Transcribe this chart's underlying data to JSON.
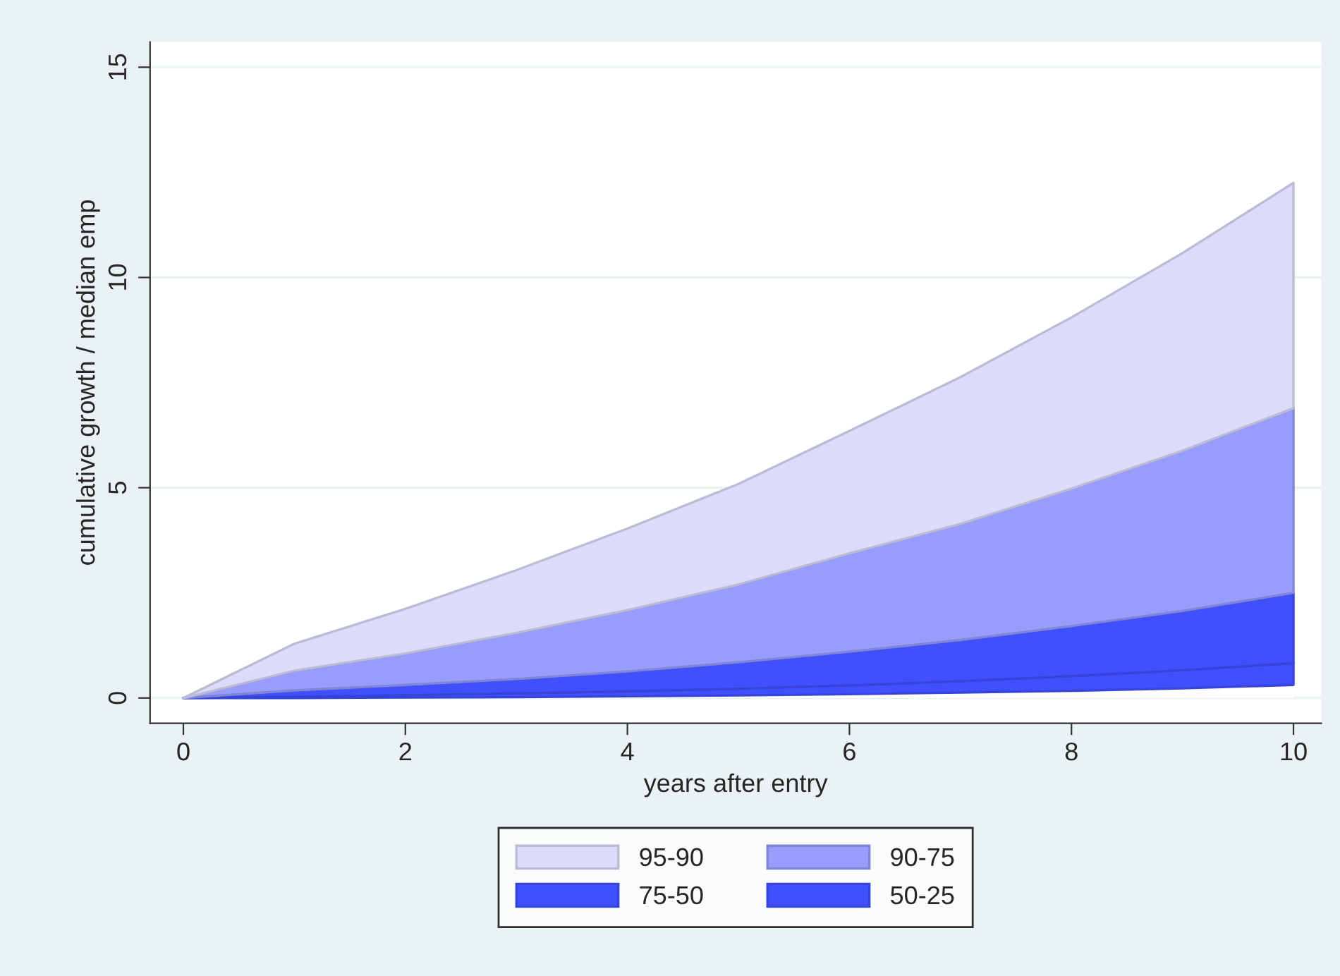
{
  "chart_data": {
    "type": "area",
    "stacked": true,
    "xlabel": "years after entry",
    "ylabel": "cumulative growth / median emp",
    "x": [
      0,
      1,
      2,
      3,
      4,
      5,
      6,
      7,
      8,
      9,
      10
    ],
    "series": [
      {
        "color": "#ffffff",
        "values": [
          0,
          0,
          0.01,
          0.02,
          0.04,
          0.06,
          0.09,
          0.13,
          0.17,
          0.23,
          0.31
        ]
      },
      {
        "name": "50-25",
        "color": "#4150ff",
        "values": [
          0,
          0.03,
          0.06,
          0.09,
          0.12,
          0.16,
          0.21,
          0.27,
          0.35,
          0.43,
          0.52
        ]
      },
      {
        "name": "75-50",
        "color": "#4150ff",
        "values": [
          0,
          0.15,
          0.24,
          0.34,
          0.47,
          0.63,
          0.8,
          0.98,
          1.19,
          1.41,
          1.67
        ]
      },
      {
        "name": "90-75",
        "color": "#989cfc",
        "values": [
          0,
          0.47,
          0.75,
          1.1,
          1.46,
          1.85,
          2.34,
          2.76,
          3.27,
          3.81,
          4.39
        ]
      },
      {
        "name": "95-90",
        "color": "#dcdcfa",
        "values": [
          0,
          0.64,
          1.06,
          1.49,
          1.94,
          2.39,
          2.91,
          3.49,
          4.07,
          4.7,
          5.36
        ]
      }
    ],
    "xlim": [
      -0.3,
      10.25
    ],
    "ylim": [
      -0.6,
      15.6
    ],
    "xticks": [
      0,
      2,
      4,
      6,
      8,
      10
    ],
    "yticks": [
      0,
      5,
      10,
      15
    ],
    "grid": "y",
    "legend": "bottom"
  }
}
